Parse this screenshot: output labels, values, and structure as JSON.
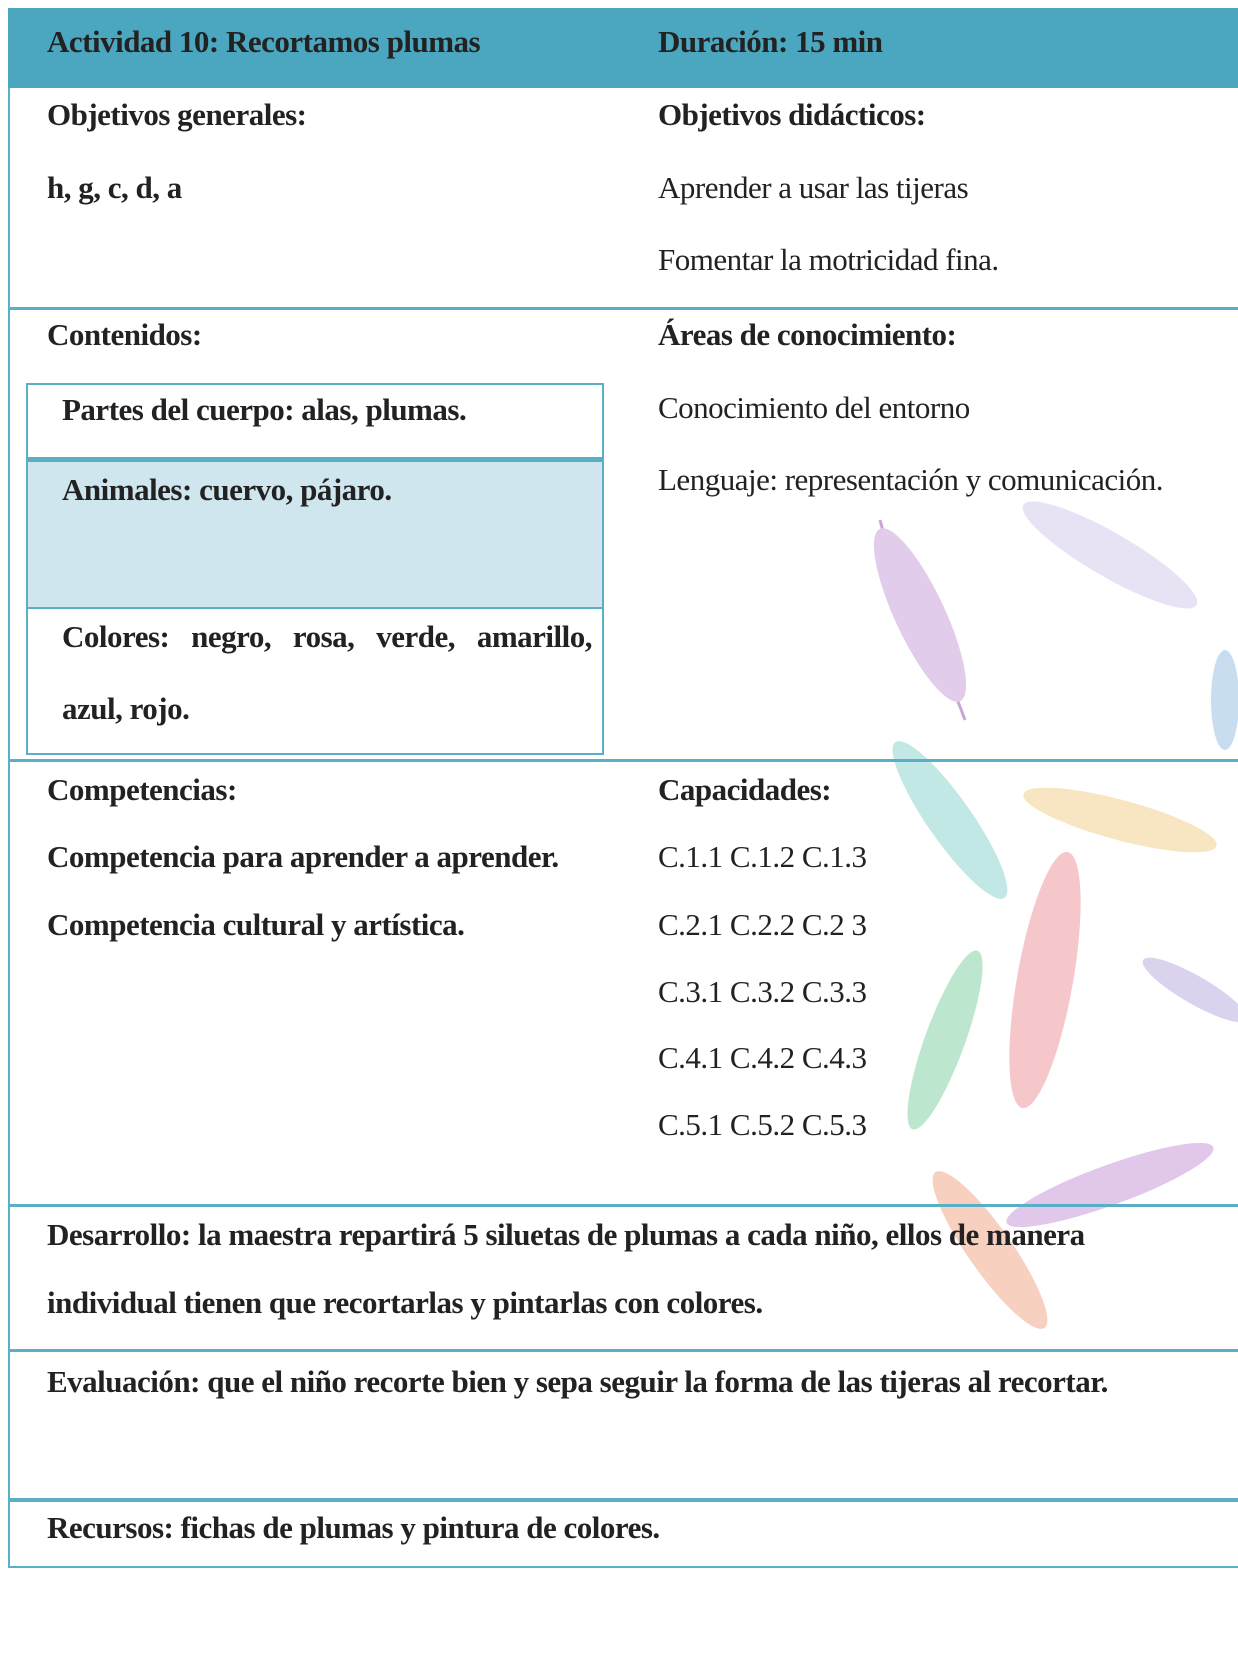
{
  "header": {
    "activity": "Actividad 10: Recortamos plumas",
    "duration": "Duración: 15 min"
  },
  "objectives": {
    "general_title": "Objetivos generales:",
    "general": "h, g, c, d, a",
    "didactic_title": "Objetivos didácticos:",
    "didactic": [
      "Aprender a usar las tijeras",
      "Fomentar la motricidad fina."
    ]
  },
  "contents": {
    "title": "Contenidos:",
    "items": [
      "Partes del cuerpo: alas, plumas.",
      "Animales: cuervo, pájaro.",
      "Colores: negro, rosa, verde, amarillo, azul, rojo."
    ]
  },
  "areas": {
    "title": "Áreas de conocimiento:",
    "items": [
      "Conocimiento del entorno",
      "Lenguaje: representación y comunicación."
    ]
  },
  "competencies": {
    "title": "Competencias:",
    "items": [
      "Competencia para aprender a aprender.",
      "Competencia cultural y artística."
    ]
  },
  "capacities": {
    "title": "Capacidades:",
    "items": [
      "C.1.1 C.1.2 C.1.3",
      "C.2.1 C.2.2 C.2 3",
      "C.3.1 C.3.2 C.3.3",
      "C.4.1 C.4.2 C.4.3",
      "C.5.1 C.5.2 C.5.3"
    ]
  },
  "development": "Desarrollo: la maestra repartirá 5 siluetas de plumas a cada niño, ellos de manera individual tienen que recortarlas y pintarlas con colores.",
  "evaluation": "Evaluación: que el niño recorte bien y sepa seguir la forma de las tijeras al recortar.",
  "resources": "Recursos: fichas de plumas y pintura de colores."
}
